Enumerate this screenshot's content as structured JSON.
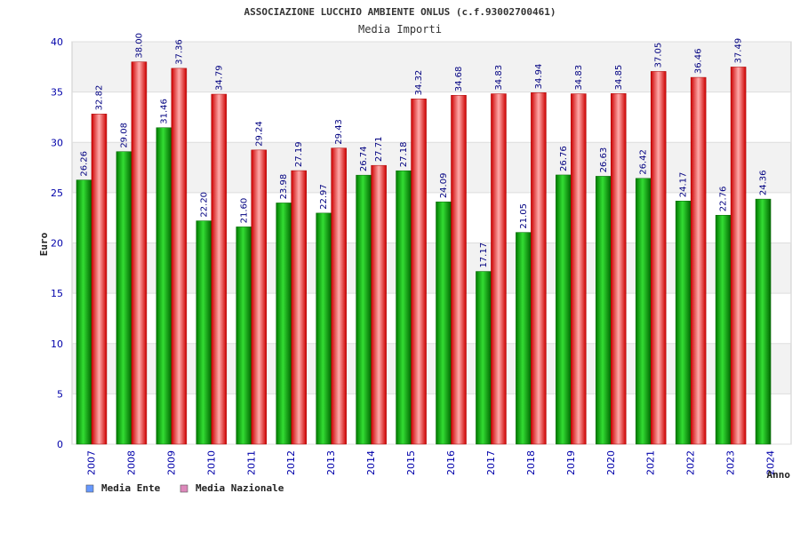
{
  "chart_data": {
    "type": "bar",
    "title": "ASSOCIAZIONE LUCCHIO AMBIENTE ONLUS (c.f.93002700461)",
    "subtitle": "Media Importi",
    "xlabel": "Anno",
    "ylabel": "Euro",
    "ylim": [
      0,
      40
    ],
    "yticks": [
      0,
      5,
      10,
      15,
      20,
      25,
      30,
      35,
      40
    ],
    "categories": [
      "2007",
      "2008",
      "2009",
      "2010",
      "2011",
      "2012",
      "2013",
      "2014",
      "2015",
      "2016",
      "2017",
      "2018",
      "2019",
      "2020",
      "2021",
      "2022",
      "2023",
      "2024"
    ],
    "series": [
      {
        "name": "Media Ente",
        "color": "#00aa00",
        "legend_color": "#6699ff",
        "values": [
          26.26,
          29.08,
          31.46,
          22.2,
          21.6,
          23.98,
          22.97,
          26.74,
          27.18,
          24.09,
          17.17,
          21.05,
          26.76,
          26.63,
          26.42,
          24.17,
          22.76,
          24.36
        ],
        "labels": [
          "26.26",
          "29.08",
          "31.46",
          "22.20",
          "21.60",
          "23.98",
          "22.97",
          "26.74",
          "27.18",
          "24.09",
          "17.17",
          "21.05",
          "26.76",
          "26.63",
          "26.42",
          "24.17",
          "22.76",
          "24.36"
        ]
      },
      {
        "name": "Media Nazionale",
        "color": "#ee1111",
        "legend_color": "#dd88bb",
        "values": [
          32.82,
          38.0,
          37.36,
          34.79,
          29.24,
          27.19,
          29.43,
          27.71,
          34.32,
          34.68,
          34.83,
          34.94,
          34.83,
          34.85,
          37.05,
          36.46,
          37.49,
          null
        ],
        "labels": [
          "32.82",
          "38.00",
          "37.36",
          "34.79",
          "29.24",
          "27.19",
          "29.43",
          "27.71",
          "34.32",
          "34.68",
          "34.83",
          "34.94",
          "34.83",
          "34.85",
          "37.05",
          "36.46",
          "37.49",
          ""
        ]
      }
    ],
    "grid": true,
    "legend_position": "bottom-left"
  }
}
